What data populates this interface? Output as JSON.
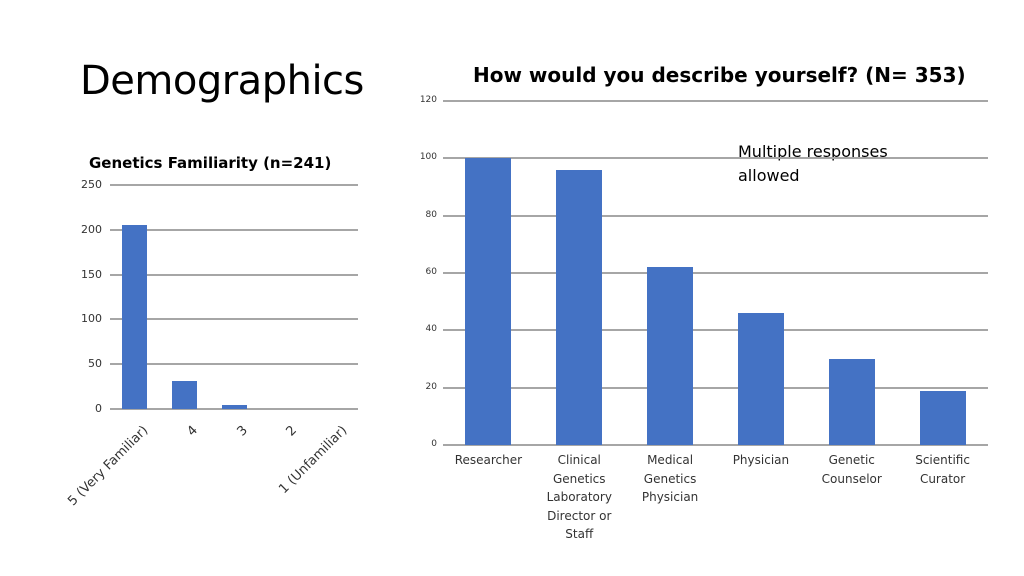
{
  "slide": {
    "title": "Demographics",
    "note": "Multiple responses allowed"
  },
  "left_chart": {
    "title": "Genetics Familiarity (n=241)"
  },
  "right_chart": {
    "title": "How would you describe yourself? (N= 353)"
  },
  "colors": {
    "bar": "#4472c4",
    "grid": "#a6a6a6"
  },
  "chart_data": [
    {
      "type": "bar",
      "title": "Genetics Familiarity (n=241)",
      "xlabel": "",
      "ylabel": "",
      "categories": [
        "5 (Very Familiar)",
        "4",
        "3",
        "2",
        "1 (Unfamiliar)"
      ],
      "values": [
        205,
        31,
        5,
        0,
        0
      ],
      "yticks": [
        0,
        50,
        100,
        150,
        200,
        250
      ],
      "ylim": [
        0,
        250
      ],
      "grid": true,
      "legend": null,
      "xtick_rotation": -45
    },
    {
      "type": "bar",
      "title": "How would you describe yourself? (N= 353)",
      "xlabel": "",
      "ylabel": "",
      "categories": [
        "Researcher",
        "Clinical Genetics Laboratory Director or Staff",
        "Medical Genetics Physician",
        "Physician",
        "Genetic Counselor",
        "Scientific Curator"
      ],
      "values": [
        100,
        96,
        62,
        46,
        30,
        19
      ],
      "yticks": [
        0,
        20,
        40,
        60,
        80,
        100,
        120
      ],
      "ylim": [
        0,
        120
      ],
      "grid": true,
      "legend": null,
      "annotations": [
        "Multiple responses allowed"
      ]
    }
  ]
}
